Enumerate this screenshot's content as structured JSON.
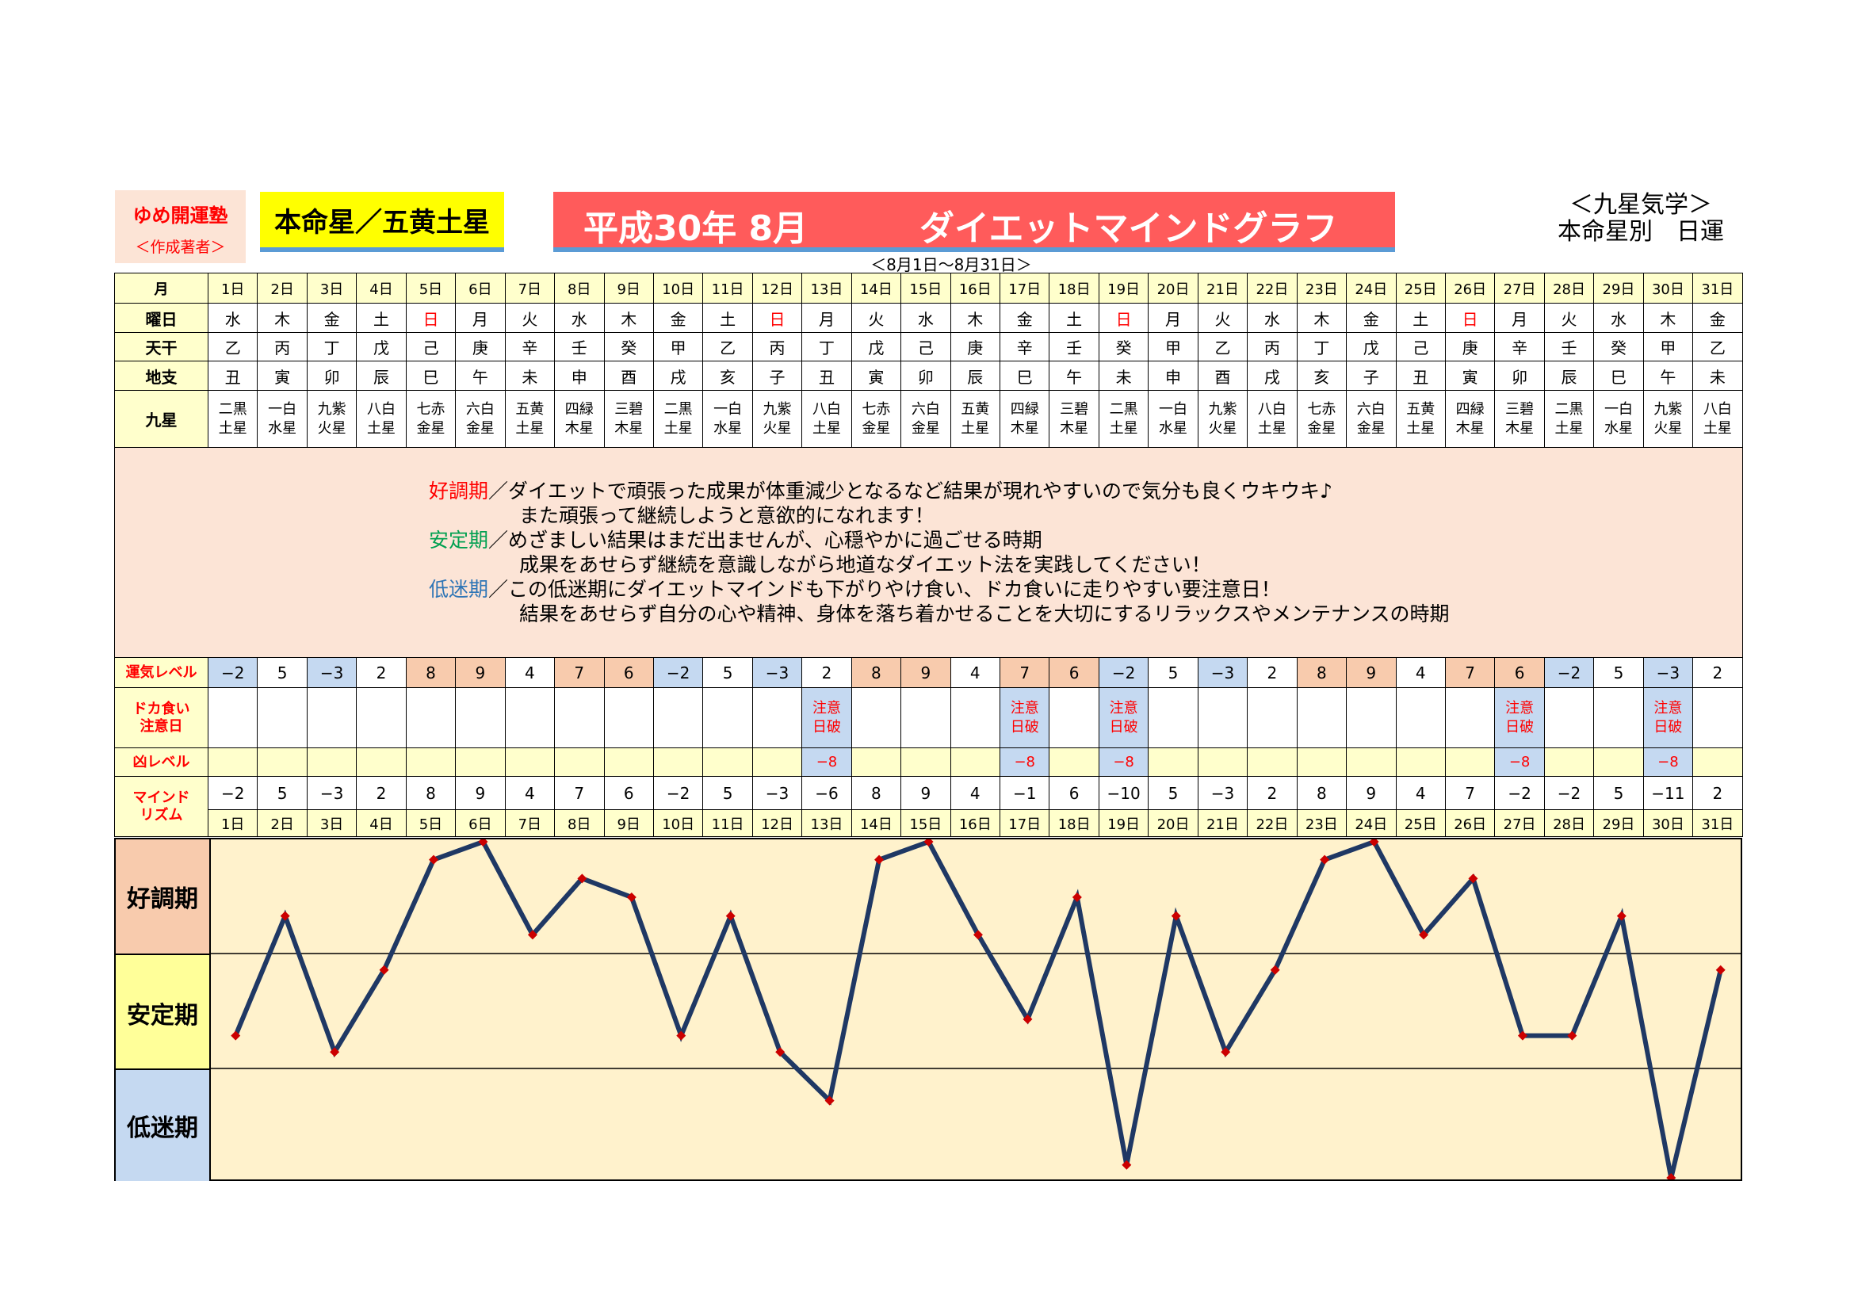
{
  "header": {
    "author_line1": "ゆめ開運塾",
    "author_line2": "＜作成著者＞",
    "honmeisei": "本命星／五黄土星",
    "banner_left": "平成30年 8月",
    "banner_right": "ダイエットマインドグラフ",
    "range": "＜8月1日～8月31日＞",
    "school_line1": "＜九星気学＞",
    "school_line2": "本命星別　日運"
  },
  "colors": {
    "good": "#f8cbad",
    "low": "#c5d9f1",
    "line": "#1f3864",
    "point": "#cc0000",
    "banner": "#ff5b5b"
  },
  "row_labels": {
    "month": "月",
    "weekday": "曜日",
    "stem": "天干",
    "branch": "地支",
    "nine": "九星",
    "luck": "運気レベル",
    "binge_1": "ドカ食い",
    "binge_2": "注意日",
    "bad": "凶レベル",
    "mind_1": "マインド",
    "mind_2": "リズム"
  },
  "days": [
    "1日",
    "2日",
    "3日",
    "4日",
    "5日",
    "6日",
    "7日",
    "8日",
    "9日",
    "10日",
    "11日",
    "12日",
    "13日",
    "14日",
    "15日",
    "16日",
    "17日",
    "18日",
    "19日",
    "20日",
    "21日",
    "22日",
    "23日",
    "24日",
    "25日",
    "26日",
    "27日",
    "28日",
    "29日",
    "30日",
    "31日"
  ],
  "weekdays": [
    "水",
    "木",
    "金",
    "土",
    "日",
    "月",
    "火",
    "水",
    "木",
    "金",
    "土",
    "日",
    "月",
    "火",
    "水",
    "木",
    "金",
    "土",
    "日",
    "月",
    "火",
    "水",
    "木",
    "金",
    "土",
    "日",
    "月",
    "火",
    "水",
    "木",
    "金"
  ],
  "stems": [
    "乙",
    "丙",
    "丁",
    "戊",
    "己",
    "庚",
    "辛",
    "壬",
    "癸",
    "甲",
    "乙",
    "丙",
    "丁",
    "戊",
    "己",
    "庚",
    "辛",
    "壬",
    "癸",
    "甲",
    "乙",
    "丙",
    "丁",
    "戊",
    "己",
    "庚",
    "辛",
    "壬",
    "癸",
    "甲",
    "乙"
  ],
  "branches": [
    "丑",
    "寅",
    "卯",
    "辰",
    "巳",
    "午",
    "未",
    "申",
    "酉",
    "戌",
    "亥",
    "子",
    "丑",
    "寅",
    "卯",
    "辰",
    "巳",
    "午",
    "未",
    "申",
    "酉",
    "戌",
    "亥",
    "子",
    "丑",
    "寅",
    "卯",
    "辰",
    "巳",
    "午",
    "未"
  ],
  "nine_stars": [
    [
      "二黒",
      "土星"
    ],
    [
      "一白",
      "水星"
    ],
    [
      "九紫",
      "火星"
    ],
    [
      "八白",
      "土星"
    ],
    [
      "七赤",
      "金星"
    ],
    [
      "六白",
      "金星"
    ],
    [
      "五黄",
      "土星"
    ],
    [
      "四緑",
      "木星"
    ],
    [
      "三碧",
      "木星"
    ],
    [
      "二黒",
      "土星"
    ],
    [
      "一白",
      "水星"
    ],
    [
      "九紫",
      "火星"
    ],
    [
      "八白",
      "土星"
    ],
    [
      "七赤",
      "金星"
    ],
    [
      "六白",
      "金星"
    ],
    [
      "五黄",
      "土星"
    ],
    [
      "四緑",
      "木星"
    ],
    [
      "三碧",
      "木星"
    ],
    [
      "二黒",
      "土星"
    ],
    [
      "一白",
      "水星"
    ],
    [
      "九紫",
      "火星"
    ],
    [
      "八白",
      "土星"
    ],
    [
      "七赤",
      "金星"
    ],
    [
      "六白",
      "金星"
    ],
    [
      "五黄",
      "土星"
    ],
    [
      "四緑",
      "木星"
    ],
    [
      "三碧",
      "木星"
    ],
    [
      "二黒",
      "土星"
    ],
    [
      "一白",
      "水星"
    ],
    [
      "九紫",
      "火星"
    ],
    [
      "八白",
      "土星"
    ]
  ],
  "legend": {
    "good_label": "好調期",
    "good_text1": "／ダイエットで頑張った成果が体重減少となるなど結果が現れやすいので気分も良くウキウキ♪",
    "good_text2": "また頑張って継続しようと意欲的になれます！",
    "stable_label": "安定期",
    "stable_text1": "／めざましい結果はまだ出ませんが、心穏やかに過ごせる時期",
    "stable_text2": "成果をあせらず継続を意識しながら地道なダイエット法を実践してください！",
    "low_label": "低迷期",
    "low_text1": "／この低迷期にダイエットマインドも下がりやけ食い、ドカ食いに走りやすい要注意日！",
    "low_text2": "結果をあせらず自分の心や精神、身体を落ち着かせることを大切にするリラックスやメンテナンスの時期"
  },
  "luck_levels": [
    "−2",
    "5",
    "−3",
    "2",
    "8",
    "9",
    "4",
    "7",
    "6",
    "−2",
    "5",
    "−3",
    "2",
    "8",
    "9",
    "4",
    "7",
    "6",
    "−2",
    "5",
    "−3",
    "2",
    "8",
    "9",
    "4",
    "7",
    "6",
    "−2",
    "5",
    "−3",
    "2"
  ],
  "binge_warning": {
    "line1": "注意",
    "line2": "日破",
    "days": [
      13,
      17,
      19,
      27,
      30
    ]
  },
  "bad_levels": [
    "",
    "",
    "",
    "",
    "",
    "",
    "",
    "",
    "",
    "",
    "",
    "",
    "−8",
    "",
    "",
    "",
    "−8",
    "",
    "−8",
    "",
    "",
    "",
    "",
    "",
    "",
    "",
    "−8",
    "",
    "",
    "−8",
    ""
  ],
  "mind_rhythm": [
    "−2",
    "5",
    "−3",
    "2",
    "8",
    "9",
    "4",
    "7",
    "6",
    "−2",
    "5",
    "−3",
    "−6",
    "8",
    "9",
    "4",
    "−1",
    "6",
    "−10",
    "5",
    "−3",
    "2",
    "8",
    "9",
    "4",
    "7",
    "−2",
    "−2",
    "5",
    "−11",
    "2"
  ],
  "zones": {
    "good": "好調期",
    "stable": "安定期",
    "low": "低迷期"
  },
  "chart_data": {
    "type": "line",
    "title": "ダイエットマインドグラフ",
    "x": [
      "1日",
      "2日",
      "3日",
      "4日",
      "5日",
      "6日",
      "7日",
      "8日",
      "9日",
      "10日",
      "11日",
      "12日",
      "13日",
      "14日",
      "15日",
      "16日",
      "17日",
      "18日",
      "19日",
      "20日",
      "21日",
      "22日",
      "23日",
      "24日",
      "25日",
      "26日",
      "27日",
      "28日",
      "29日",
      "30日",
      "31日"
    ],
    "series": [
      {
        "values": [
          -2,
          5,
          -3,
          2,
          8,
          9,
          4,
          7,
          6,
          -2,
          5,
          -3,
          -6,
          8,
          9,
          4,
          -1,
          6,
          -10,
          5,
          -3,
          2,
          8,
          9,
          4,
          7,
          -2,
          -2,
          5,
          -11,
          2
        ]
      }
    ],
    "ylim": [
      -12,
      10
    ],
    "bands": [
      {
        "label": "好調期",
        "from": 3,
        "to": 10
      },
      {
        "label": "安定期",
        "from": -4,
        "to": 3
      },
      {
        "label": "低迷期",
        "from": -12,
        "to": -4
      }
    ],
    "grid": false,
    "legend": "none"
  }
}
